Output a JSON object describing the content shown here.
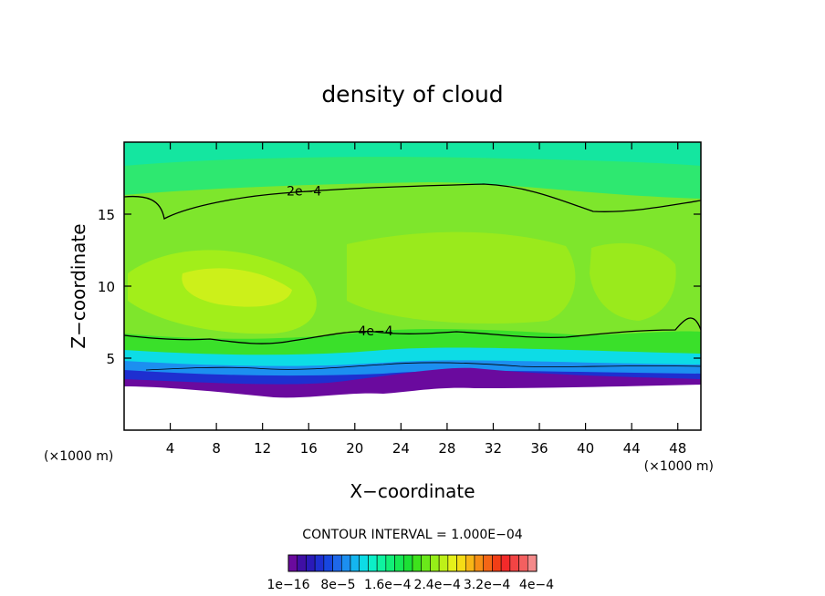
{
  "chart_data": {
    "type": "heatmap",
    "title": "density of cloud",
    "xlabel": "X−coordinate",
    "ylabel": "Z−coordinate",
    "x_unit": "(×1000 m)",
    "y_unit": "(×1000 m)",
    "xlim": [
      0,
      50
    ],
    "ylim": [
      0,
      20
    ],
    "x_ticks": [
      4,
      8,
      12,
      16,
      20,
      24,
      28,
      32,
      36,
      40,
      44,
      48
    ],
    "y_ticks": [
      5,
      10,
      15
    ],
    "contour_interval_text": "CONTOUR INTERVAL = 1.000E−04",
    "contour_labels": [
      {
        "text": "2e−4",
        "x": 15.6,
        "y": 16.6
      },
      {
        "text": "4e−4",
        "x": 21.8,
        "y": 6.9
      }
    ],
    "colorbar": {
      "colors": [
        "#6a0a9e",
        "#3f0fa5",
        "#2a1ab8",
        "#1e2fd0",
        "#1747e0",
        "#1e68ea",
        "#1c8ff0",
        "#14b6f0",
        "#0ddce6",
        "#0cefc8",
        "#0ff2a0",
        "#12ee78",
        "#16e855",
        "#1ce035",
        "#3ee21c",
        "#6ae81a",
        "#96ee18",
        "#bef018",
        "#e6f01a",
        "#f5dc16",
        "#f7b616",
        "#f68e16",
        "#f46616",
        "#f23e16",
        "#f22a2a",
        "#f24444",
        "#f46060",
        "#f48a8a"
      ],
      "tick_labels": [
        "1e−16",
        "8e−5",
        "1.6e−4",
        "2.4e−4",
        "3.2e−4",
        "4e−4"
      ]
    },
    "grid": false,
    "legend": "colorbar-bottom"
  }
}
